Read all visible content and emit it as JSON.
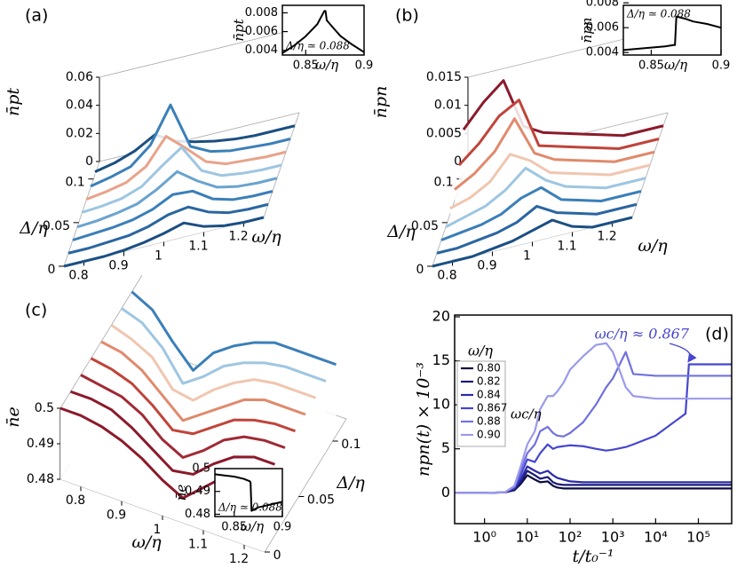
{
  "chart_data": [
    {
      "type": "waterfall3d",
      "label": "(a)",
      "xlabel": "ω/η",
      "ylabel": "Δ/η",
      "zlabel": "n̄pt",
      "xlim": [
        0.75,
        1.25
      ],
      "ylim": [
        0,
        0.12
      ],
      "zlim": [
        0,
        0.06
      ],
      "xticks": [
        0.8,
        0.9,
        1,
        1.1,
        1.2
      ],
      "yticks": [
        0,
        0.05,
        0.1
      ],
      "zticks": [
        0,
        0.02,
        0.04,
        0.06
      ],
      "x": [
        0.75,
        0.8,
        0.85,
        0.9,
        0.95,
        1,
        1.05,
        1.1,
        1.15,
        1.2,
        1.25
      ],
      "series": [
        {
          "delta": 0,
          "color": "#1b4f82",
          "values": [
            0,
            0,
            0,
            0.001,
            0.003,
            0.006,
            0.01,
            0.004,
            0.001,
            0,
            0
          ]
        },
        {
          "delta": 0.015,
          "color": "#2a66a0",
          "values": [
            0,
            0,
            0.001,
            0.002,
            0.005,
            0.01,
            0.012,
            0.005,
            0.001,
            0,
            0
          ]
        },
        {
          "delta": 0.03,
          "color": "#3b7fb8",
          "values": [
            0,
            0.001,
            0.002,
            0.004,
            0.008,
            0.015,
            0.014,
            0.005,
            0.001,
            0,
            0
          ]
        },
        {
          "delta": 0.045,
          "color": "#6aa3cf",
          "values": [
            0,
            0.001,
            0.003,
            0.006,
            0.013,
            0.022,
            0.012,
            0.004,
            0.001,
            0,
            0
          ]
        },
        {
          "delta": 0.06,
          "color": "#9ec6e2",
          "values": [
            0.001,
            0.002,
            0.004,
            0.009,
            0.02,
            0.03,
            0.01,
            0.003,
            0.001,
            0,
            0
          ]
        },
        {
          "delta": 0.075,
          "color": "#e8a38a",
          "values": [
            0.001,
            0.003,
            0.006,
            0.014,
            0.032,
            0.02,
            0.007,
            0.002,
            0.001,
            0,
            0
          ]
        },
        {
          "delta": 0.09,
          "color": "#3b7fb8",
          "values": [
            0.001,
            0.004,
            0.008,
            0.02,
            0.045,
            0.012,
            0.005,
            0.002,
            0.001,
            0,
            0
          ]
        },
        {
          "delta": 0.105,
          "color": "#1b4f82",
          "values": [
            0.002,
            0.005,
            0.01,
            0.018,
            0.01,
            0.006,
            0.003,
            0.001,
            0,
            0,
            0
          ]
        }
      ]
    },
    {
      "type": "line",
      "xlabel": "ω/η",
      "ylabel": "n̄pt",
      "annotation": "Δ/η ≃ 0.088",
      "xlim": [
        0.83,
        0.9
      ],
      "ylim": [
        0.0035,
        0.0088
      ],
      "xticks": [
        0.85,
        0.9
      ],
      "yticks": [
        0.004,
        0.006,
        0.008
      ],
      "x": [
        0.83,
        0.84,
        0.85,
        0.86,
        0.866,
        0.867,
        0.868,
        0.875,
        0.88,
        0.89,
        0.9
      ],
      "series": [
        {
          "color": "#000000",
          "values": [
            0.0037,
            0.0045,
            0.0055,
            0.0068,
            0.0082,
            0.0082,
            0.0072,
            0.0062,
            0.0055,
            0.0046,
            0.0038
          ]
        }
      ]
    },
    {
      "type": "waterfall3d",
      "label": "(b)",
      "xlabel": "ω/η",
      "ylabel": "Δ/η",
      "zlabel": "n̄pn",
      "xlim": [
        0.75,
        1.25
      ],
      "ylim": [
        0,
        0.12
      ],
      "zlim": [
        0,
        0.015
      ],
      "xticks": [
        0.8,
        0.9,
        1,
        1.1,
        1.2
      ],
      "yticks": [
        0,
        0.05,
        0.1
      ],
      "zticks": [
        0,
        0.005,
        0.01,
        0.015
      ],
      "x": [
        0.75,
        0.8,
        0.85,
        0.9,
        0.95,
        1,
        1.05,
        1.1,
        1.15,
        1.2,
        1.25
      ],
      "series": [
        {
          "delta": 0,
          "color": "#1b4f82",
          "values": [
            0,
            0,
            0,
            0.0005,
            0.001,
            0.002,
            0.003,
            0.001,
            0,
            0,
            0
          ]
        },
        {
          "delta": 0.015,
          "color": "#2a66a0",
          "values": [
            0,
            0,
            0.0005,
            0.001,
            0.002,
            0.004,
            0.002,
            0.001,
            0,
            0,
            0
          ]
        },
        {
          "delta": 0.03,
          "color": "#3b7fb8",
          "values": [
            0,
            0.0005,
            0.001,
            0.002,
            0.004,
            0.005,
            0.002,
            0.001,
            0,
            0,
            0
          ]
        },
        {
          "delta": 0.045,
          "color": "#9ec6e2",
          "values": [
            0,
            0.001,
            0.002,
            0.004,
            0.007,
            0.004,
            0.002,
            0.001,
            0,
            0,
            0
          ]
        },
        {
          "delta": 0.06,
          "color": "#f0c6b0",
          "values": [
            0.001,
            0.002,
            0.004,
            0.008,
            0.006,
            0.003,
            0.002,
            0.001,
            0,
            0,
            0
          ]
        },
        {
          "delta": 0.075,
          "color": "#e08a6c",
          "values": [
            0.002,
            0.004,
            0.007,
            0.012,
            0.005,
            0.003,
            0.002,
            0.001,
            0,
            0,
            0
          ]
        },
        {
          "delta": 0.09,
          "color": "#c0443a",
          "values": [
            0.004,
            0.007,
            0.011,
            0.013,
            0.004,
            0.003,
            0.002,
            0.001,
            0,
            0,
            0
          ]
        },
        {
          "delta": 0.105,
          "color": "#8b1a2b",
          "values": [
            0.008,
            0.012,
            0.015,
            0.006,
            0.004,
            0.003,
            0.002,
            0.001,
            0,
            0,
            0
          ]
        }
      ]
    },
    {
      "type": "line",
      "xlabel": "ω/η",
      "ylabel": "n̄pn",
      "annotation": "Δ/η ≃ 0.088",
      "xlim": [
        0.83,
        0.9
      ],
      "ylim": [
        0.0038,
        0.0078
      ],
      "xticks": [
        0.85,
        0.9
      ],
      "yticks": [
        0.004,
        0.006,
        0.008
      ],
      "x": [
        0.83,
        0.84,
        0.85,
        0.86,
        0.866,
        0.867,
        0.868,
        0.875,
        0.88,
        0.89,
        0.9
      ],
      "series": [
        {
          "color": "#000000",
          "values": [
            0.0042,
            0.0043,
            0.0044,
            0.0045,
            0.0046,
            0.0046,
            0.0069,
            0.0067,
            0.0065,
            0.0063,
            0.006
          ]
        }
      ]
    },
    {
      "type": "waterfall3d",
      "label": "(c)",
      "xlabel": "ω/η",
      "ylabel": "Δ/η",
      "zlabel": "n̄e",
      "xlim": [
        0.75,
        1.25
      ],
      "ylim": [
        0,
        0.12
      ],
      "zlim": [
        0.48,
        0.5
      ],
      "xticks": [
        0.8,
        0.9,
        1,
        1.1,
        1.2
      ],
      "yticks": [
        0,
        0.05,
        0.1
      ],
      "zticks": [
        0.48,
        0.49,
        0.5
      ],
      "x": [
        0.75,
        0.8,
        0.85,
        0.9,
        0.95,
        1,
        1.05,
        1.1,
        1.15,
        1.2,
        1.25
      ],
      "series": [
        {
          "delta": 0,
          "color": "#8b1a2b",
          "values": [
            0.5,
            0.5,
            0.499,
            0.497,
            0.494,
            0.49,
            0.487,
            0.492,
            0.497,
            0.5,
            0.5
          ]
        },
        {
          "delta": 0.015,
          "color": "#8b1a2b",
          "values": [
            0.5,
            0.5,
            0.499,
            0.496,
            0.492,
            0.488,
            0.489,
            0.494,
            0.498,
            0.5,
            0.5
          ]
        },
        {
          "delta": 0.03,
          "color": "#a02a35",
          "values": [
            0.5,
            0.499,
            0.498,
            0.495,
            0.49,
            0.487,
            0.491,
            0.496,
            0.499,
            0.5,
            0.5
          ]
        },
        {
          "delta": 0.045,
          "color": "#c0443a",
          "values": [
            0.5,
            0.499,
            0.497,
            0.493,
            0.488,
            0.489,
            0.493,
            0.497,
            0.499,
            0.5,
            0.5
          ]
        },
        {
          "delta": 0.06,
          "color": "#e08a6c",
          "values": [
            0.5,
            0.499,
            0.496,
            0.491,
            0.486,
            0.49,
            0.494,
            0.498,
            0.5,
            0.5,
            0.5
          ]
        },
        {
          "delta": 0.075,
          "color": "#f0c6b0",
          "values": [
            0.5,
            0.498,
            0.495,
            0.488,
            0.487,
            0.492,
            0.496,
            0.499,
            0.5,
            0.5,
            0.5
          ]
        },
        {
          "delta": 0.09,
          "color": "#9ec6e2",
          "values": [
            0.5,
            0.498,
            0.493,
            0.485,
            0.489,
            0.494,
            0.497,
            0.499,
            0.5,
            0.5,
            0.5
          ]
        },
        {
          "delta": 0.105,
          "color": "#3b7fb8",
          "values": [
            0.5,
            0.497,
            0.49,
            0.484,
            0.491,
            0.495,
            0.498,
            0.5,
            0.5,
            0.5,
            0.5
          ]
        }
      ]
    },
    {
      "type": "line",
      "xlabel": "ω/η",
      "ylabel": "n̄e",
      "annotation": "Δ/η ≃ 0.088",
      "xlim": [
        0.83,
        0.9
      ],
      "ylim": [
        0.479,
        0.5
      ],
      "xticks": [
        0.85,
        0.9
      ],
      "yticks": [
        0.48,
        0.49,
        0.5
      ],
      "x": [
        0.83,
        0.84,
        0.85,
        0.86,
        0.866,
        0.867,
        0.868,
        0.875,
        0.88,
        0.89,
        0.9
      ],
      "series": [
        {
          "color": "#000000",
          "values": [
            0.4975,
            0.497,
            0.4965,
            0.4955,
            0.4945,
            0.494,
            0.4815,
            0.483,
            0.4835,
            0.4845,
            0.4855
          ]
        }
      ]
    },
    {
      "type": "line",
      "label": "(d)",
      "xscale": "log",
      "xlabel": "t/t₀⁻¹",
      "ylabel": "npn(t) × 10⁻³",
      "legend_title": "ω/η",
      "legend_note": "ωc/η",
      "annotation": "ωc/η ≈ 0.867",
      "xlim": [
        0.2,
        600000
      ],
      "ylim": [
        -3.5,
        20.2
      ],
      "xticks": [
        {
          "value": 1,
          "label": "10⁰"
        },
        {
          "value": 10,
          "label": "10¹"
        },
        {
          "value": 100,
          "label": "10²"
        },
        {
          "value": 1000,
          "label": "10³"
        },
        {
          "value": 10000,
          "label": "10⁴"
        },
        {
          "value": 100000,
          "label": "10⁵"
        }
      ],
      "yticks": [
        0,
        5,
        10,
        15,
        20
      ],
      "x": [
        0.2,
        1,
        3,
        5,
        7,
        10,
        15,
        20,
        30,
        40,
        50,
        70,
        100,
        200,
        400,
        700,
        1000,
        2000,
        3000,
        10000,
        50000,
        60000,
        100000,
        600000
      ],
      "series": [
        {
          "name": "0.80",
          "color": "#0a0a40",
          "values": [
            0,
            0,
            0.05,
            0.3,
            1,
            2,
            1.5,
            1.2,
            1.3,
            0.8,
            0.6,
            0.5,
            0.5,
            0.5,
            0.5,
            0.5,
            0.5,
            0.5,
            0.5,
            0.5,
            0.5,
            0.5,
            0.5,
            0.5
          ]
        },
        {
          "name": "0.82",
          "color": "#1a1a78",
          "values": [
            0,
            0,
            0.05,
            0.4,
            1.2,
            2.5,
            2,
            1.6,
            1.8,
            1.2,
            1,
            0.9,
            0.9,
            0.9,
            0.9,
            0.9,
            0.9,
            0.9,
            0.9,
            0.9,
            0.9,
            0.9,
            0.9,
            0.9
          ]
        },
        {
          "name": "0.84",
          "color": "#2a2aa8",
          "values": [
            0,
            0,
            0.05,
            0.5,
            1.5,
            3,
            2.5,
            2.2,
            2.5,
            2,
            1.7,
            1.5,
            1.3,
            1.2,
            1.2,
            1.2,
            1.2,
            1.2,
            1.2,
            1.2,
            1.2,
            1.2,
            1.2,
            1.2
          ]
        },
        {
          "name": "0.867",
          "color": "#4646d0",
          "values": [
            0,
            0,
            0.05,
            0.6,
            2,
            3.8,
            3.5,
            4.5,
            5.5,
            5,
            5.2,
            5.3,
            5.4,
            5.3,
            5,
            4.8,
            4.9,
            5.2,
            5.5,
            6.5,
            9,
            14.6,
            14.6,
            14.6
          ]
        },
        {
          "name": "0.88",
          "color": "#7070e0",
          "values": [
            0,
            0,
            0.06,
            0.7,
            2.5,
            4.5,
            5.5,
            7,
            7.5,
            6.8,
            6.5,
            6.4,
            6.8,
            8,
            10,
            12,
            13,
            16,
            13.5,
            13.3,
            13.3,
            13.3,
            13.3,
            13.3
          ]
        },
        {
          "name": "0.90",
          "color": "#9a9aea",
          "values": [
            0,
            0,
            0.06,
            0.8,
            3,
            5.5,
            7,
            9.5,
            11,
            11,
            11.5,
            12.5,
            14,
            15.5,
            16.8,
            17,
            16,
            12,
            11,
            10.7,
            10.7,
            10.7,
            10.7,
            10.7
          ]
        }
      ]
    }
  ]
}
